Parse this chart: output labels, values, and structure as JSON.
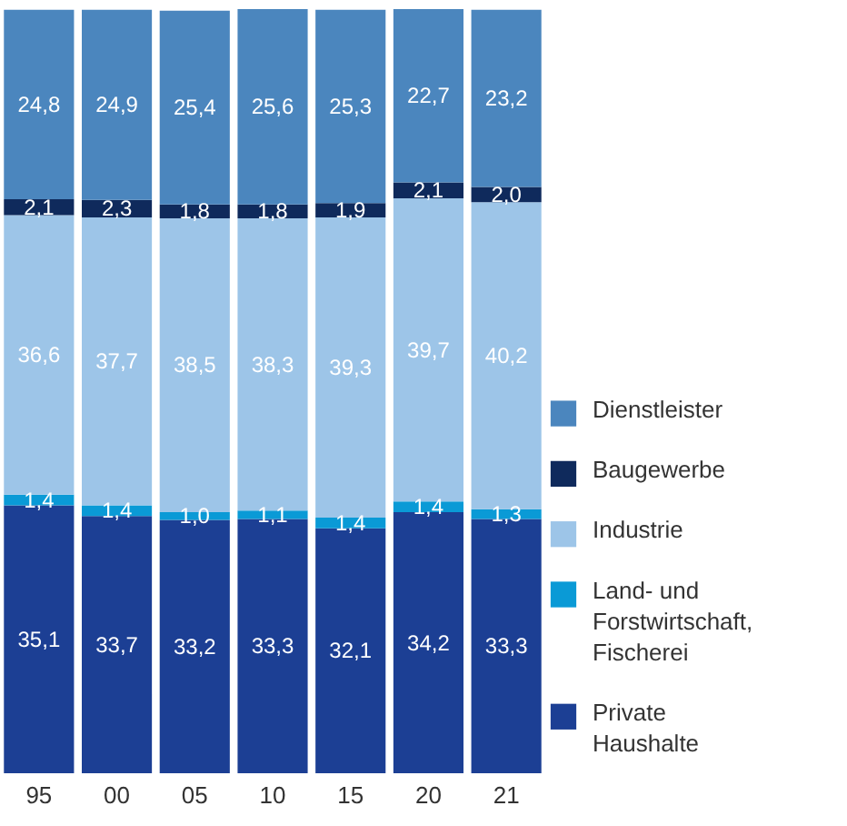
{
  "chart_data": {
    "type": "bar",
    "stacked": true,
    "legend": "right",
    "categories": [
      "95",
      "00",
      "05",
      "10",
      "15",
      "20",
      "21"
    ],
    "series": [
      {
        "name": "Private Haushalte",
        "color": "#1c3f94",
        "values": [
          35.1,
          33.7,
          33.2,
          33.3,
          32.1,
          34.2,
          33.3
        ],
        "value_labels": [
          "35,1",
          "33,7",
          "33,2",
          "33,3",
          "32,1",
          "34,2",
          "33,3"
        ]
      },
      {
        "name": "Land- und Forstwirtschaft, Fischerei",
        "color": "#0a9ad6",
        "values": [
          1.4,
          1.4,
          1.0,
          1.1,
          1.4,
          1.4,
          1.3
        ],
        "value_labels": [
          "1,4",
          "1,4",
          "1,0",
          "1,1",
          "1,4",
          "1,4",
          "1,3"
        ]
      },
      {
        "name": "Industrie",
        "color": "#9dc5e8",
        "values": [
          36.6,
          37.7,
          38.5,
          38.3,
          39.3,
          39.7,
          40.2
        ],
        "value_labels": [
          "36,6",
          "37,7",
          "38,5",
          "38,3",
          "39,3",
          "39,7",
          "40,2"
        ]
      },
      {
        "name": "Baugewerbe",
        "color": "#0f2a5c",
        "values": [
          2.1,
          2.3,
          1.8,
          1.8,
          1.9,
          2.1,
          2.0
        ],
        "value_labels": [
          "2,1",
          "2,3",
          "1,8",
          "1,8",
          "1,9",
          "2,1",
          "2,0"
        ]
      },
      {
        "name": "Dienstleister",
        "color": "#4b86be",
        "values": [
          24.8,
          24.9,
          25.4,
          25.6,
          25.3,
          22.7,
          23.2
        ],
        "value_labels": [
          "24,8",
          "24,9",
          "25,4",
          "25,6",
          "25,3",
          "22,7",
          "23,2"
        ]
      }
    ]
  }
}
